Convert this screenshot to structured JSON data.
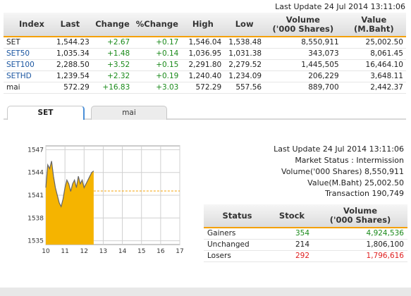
{
  "header": {
    "last_update": "Last Update 24 Jul 2014 13:11:06"
  },
  "index_table": {
    "columns": [
      "Index",
      "Last",
      "Change",
      "%Change",
      "High",
      "Low",
      "Volume\n('000 Shares)",
      "Value\n(M.Baht)"
    ],
    "rows": [
      [
        "SET",
        "1,544.23",
        "+2.67",
        "+0.17",
        "1,546.04",
        "1,538.48",
        "8,550,911",
        "25,002.50"
      ],
      [
        "SET50",
        "1,035.34",
        "+1.48",
        "+0.14",
        "1,036.95",
        "1,031.38",
        "343,073",
        "8,061.45"
      ],
      [
        "SET100",
        "2,288.50",
        "+3.52",
        "+0.15",
        "2,291.80",
        "2,279.52",
        "1,445,505",
        "16,464.10"
      ],
      [
        "SETHD",
        "1,239.54",
        "+2.32",
        "+0.19",
        "1,240.40",
        "1,234.09",
        "206,229",
        "3,648.11"
      ],
      [
        "mai",
        "572.29",
        "+16.83",
        "+3.03",
        "572.29",
        "557.56",
        "889,700",
        "2,442.37"
      ]
    ]
  },
  "tabs": [
    {
      "label": "SET"
    },
    {
      "label": "mai"
    }
  ],
  "chart_data": {
    "type": "area",
    "x_ticks": [
      "10",
      "11",
      "12",
      "13",
      "14",
      "15",
      "16",
      "17"
    ],
    "y_ticks": [
      "1547",
      "1544",
      "1541",
      "1538",
      "1535"
    ],
    "ylim": [
      1534.5,
      1547.5
    ],
    "xlim": [
      10,
      17
    ],
    "previous_close": 1541.56,
    "x": [
      10.0,
      10.1,
      10.2,
      10.3,
      10.4,
      10.5,
      10.6,
      10.7,
      10.8,
      10.9,
      11.0,
      11.1,
      11.2,
      11.3,
      11.4,
      11.5,
      11.6,
      11.7,
      11.8,
      11.9,
      12.0,
      12.1,
      12.2,
      12.3,
      12.4,
      12.5
    ],
    "values": [
      1542.0,
      1545.0,
      1544.5,
      1545.5,
      1543.5,
      1542.0,
      1541.0,
      1540.0,
      1539.5,
      1540.5,
      1542.0,
      1543.0,
      1542.5,
      1541.5,
      1542.5,
      1543.0,
      1542.0,
      1543.5,
      1542.5,
      1543.0,
      1542.0,
      1542.5,
      1543.0,
      1543.5,
      1544.0,
      1544.2
    ],
    "fill_color": "#f5b400",
    "line_color": "#666666",
    "reference_color": "#f5a000"
  },
  "market_info": {
    "last_update": "Last Update 24 Jul 2014 13:11:06",
    "market_status": "Market Status : Intermission",
    "volume": "Volume('000 Shares) 8,550,911",
    "value": "Value(M.Baht) 25,002.50",
    "transaction": "Transaction 190,749"
  },
  "status_table": {
    "columns": [
      "Status",
      "Stock",
      "Volume\n('000 Shares)"
    ],
    "rows": [
      {
        "status": "Gainers",
        "stock": "354",
        "volume": "4,924,536"
      },
      {
        "status": "Unchanged",
        "stock": "214",
        "volume": "1,806,100"
      },
      {
        "status": "Losers",
        "stock": "292",
        "volume": "1,796,616"
      }
    ]
  }
}
